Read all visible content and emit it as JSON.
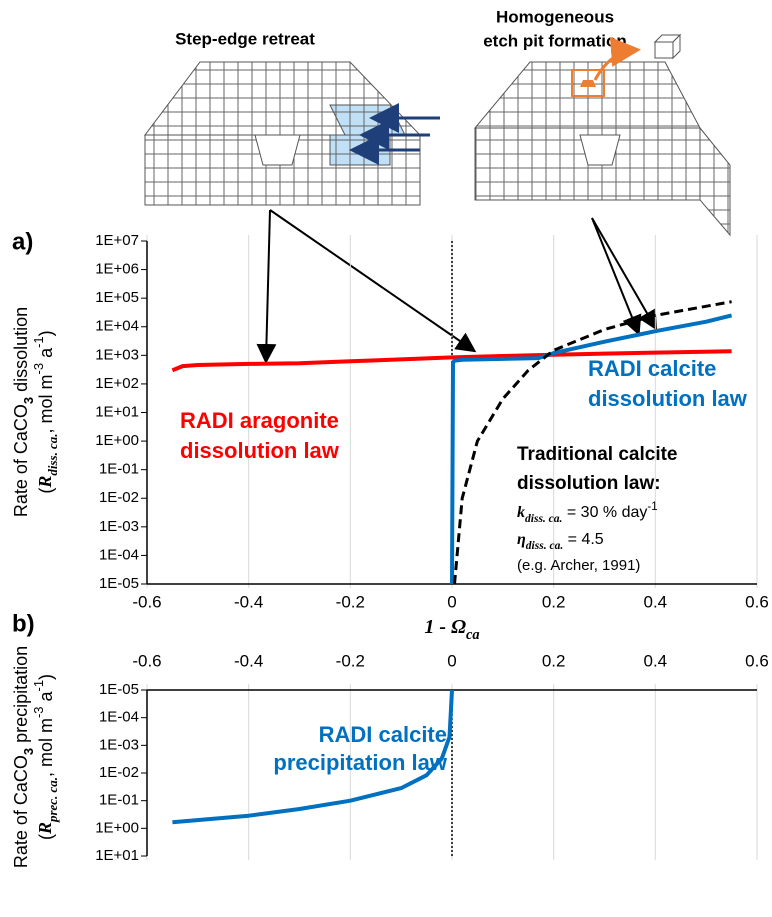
{
  "illustrations": {
    "left_title": "Step-edge retreat",
    "right_title": [
      "Homogeneous",
      "etch pit formation"
    ]
  },
  "chart_data": [
    {
      "type": "line",
      "panel": "a)",
      "x_label": [
        "1 - Ω",
        "ca"
      ],
      "y_label": {
        "line1": [
          "Rate of CaCO",
          "3",
          " dissolution"
        ],
        "line2": [
          "(",
          "R",
          "diss. ca.",
          ", mol m",
          "-3",
          " a",
          "-1",
          ")"
        ]
      },
      "xlim": [
        -0.6,
        0.6
      ],
      "xticks": [
        -0.6,
        -0.4,
        -0.2,
        0,
        0.2,
        0.4,
        0.6
      ],
      "yscale": "log",
      "ylim": [
        1e-05,
        10000000
      ],
      "yticks": [
        {
          "value": 10000000,
          "label": "1E+07"
        },
        {
          "value": 1000000,
          "label": "1E+06"
        },
        {
          "value": 100000,
          "label": "1E+05"
        },
        {
          "value": 10000,
          "label": "1E+04"
        },
        {
          "value": 1000,
          "label": "1E+03"
        },
        {
          "value": 100,
          "label": "1E+02"
        },
        {
          "value": 10,
          "label": "1E+01"
        },
        {
          "value": 1,
          "label": "1E+00"
        },
        {
          "value": 0.1,
          "label": "1E-01"
        },
        {
          "value": 0.01,
          "label": "1E-02"
        },
        {
          "value": 0.001,
          "label": "1E-03"
        },
        {
          "value": 0.0001,
          "label": "1E-04"
        },
        {
          "value": 1e-05,
          "label": "1E-05"
        }
      ],
      "grid": "x",
      "reference_line_x": 0,
      "series": [
        {
          "name": [
            "RADI aragonite",
            "dissolution law"
          ],
          "color": "#ff0000",
          "x": [
            -0.55,
            -0.53,
            -0.5,
            -0.4,
            -0.3,
            -0.2,
            -0.1,
            0,
            0.1,
            0.2,
            0.3,
            0.4,
            0.55
          ],
          "values": [
            300,
            420,
            460,
            500,
            530,
            620,
            720,
            850,
            950,
            1050,
            1150,
            1250,
            1400
          ]
        },
        {
          "name": [
            "RADI calcite",
            "dissolution law"
          ],
          "color": "#0070c0",
          "x": [
            0,
            0.002,
            0.005,
            0.02,
            0.1,
            0.17,
            0.2,
            0.3,
            0.4,
            0.5,
            0.55
          ],
          "values": [
            1e-05,
            550,
            650,
            700,
            750,
            800,
            1200,
            3000,
            7000,
            15000,
            25000
          ]
        },
        {
          "name": [
            "Traditional calcite",
            "dissolution law:"
          ],
          "color": "#000000",
          "dash": true,
          "x": [
            0.005,
            0.02,
            0.05,
            0.1,
            0.15,
            0.2,
            0.3,
            0.4,
            0.55
          ],
          "values": [
            1e-05,
            0.01,
            1,
            30,
            300,
            1500,
            8000,
            25000,
            75000
          ]
        }
      ],
      "annotations": {
        "parameters": [
          [
            "k",
            "diss. ca.",
            " = 30 % day",
            "-1"
          ],
          [
            "η",
            "diss. ca.",
            " = 4.5"
          ]
        ],
        "source": "(e.g. Archer, 1991)"
      }
    },
    {
      "type": "line",
      "panel": "b)",
      "y_label": {
        "line1": [
          "Rate of CaCO",
          "3",
          " precipitation"
        ],
        "line2": [
          "(",
          "R",
          "prec. ca.",
          ", mol m",
          "-3",
          " a",
          "-1",
          ")"
        ]
      },
      "xlim": [
        -0.6,
        0.6
      ],
      "xticks": [
        -0.6,
        -0.4,
        -0.2,
        0,
        0.2,
        0.4,
        0.6
      ],
      "x_axis_position": "top",
      "yscale": "log",
      "ylim": [
        10,
        1e-05
      ],
      "yticks": [
        {
          "value": 1e-05,
          "label": "1E-05"
        },
        {
          "value": 0.0001,
          "label": "1E-04"
        },
        {
          "value": 0.001,
          "label": "1E-03"
        },
        {
          "value": 0.01,
          "label": "1E-02"
        },
        {
          "value": 0.1,
          "label": "1E-01"
        },
        {
          "value": 1,
          "label": "1E+00"
        },
        {
          "value": 10,
          "label": "1E+01"
        }
      ],
      "grid": "x",
      "reference_line_x": 0,
      "series": [
        {
          "name": [
            "RADI calcite",
            "precipitation law"
          ],
          "color": "#0070c0",
          "x": [
            -0.55,
            -0.4,
            -0.3,
            -0.2,
            -0.1,
            -0.05,
            -0.02,
            -0.005,
            0
          ],
          "values": [
            0.6,
            0.35,
            0.2,
            0.1,
            0.035,
            0.012,
            0.003,
            0.0005,
            1e-05
          ]
        }
      ]
    }
  ]
}
